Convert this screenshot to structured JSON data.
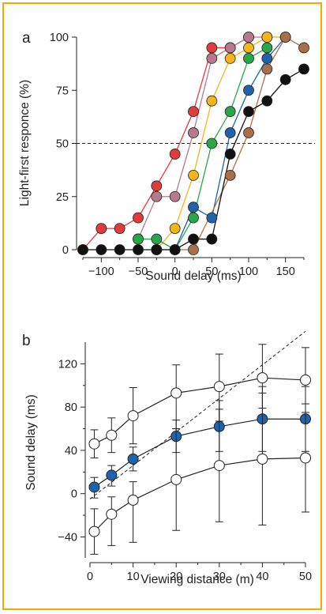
{
  "figure": {
    "border_color": "#f2a900"
  },
  "chart_data": [
    {
      "panel": "a",
      "type": "line",
      "xlabel": "Sound delay (ms)",
      "ylabel": "Light-first responce (%)",
      "xlim": [
        -125,
        185
      ],
      "ylim": [
        0,
        100
      ],
      "xticks": [
        -100,
        -50,
        0,
        50,
        100,
        150
      ],
      "xtick_labels": [
        "−100",
        "−50",
        "0",
        "50",
        "100",
        "150"
      ],
      "yticks": [
        0,
        25,
        50,
        75,
        100
      ],
      "ytick_labels": [
        "0",
        "25",
        "50",
        "75",
        "100"
      ],
      "reference_line": {
        "y": 50,
        "style": "dashed"
      },
      "series": [
        {
          "color": "#e03c3c",
          "x": [
            -125,
            -100,
            -75,
            -50,
            -25,
            0,
            25,
            50,
            75,
            100
          ],
          "y": [
            0,
            10,
            10,
            15,
            30,
            45,
            65,
            95,
            95,
            100
          ]
        },
        {
          "color": "#b8788e",
          "x": [
            -50,
            -25,
            0,
            25,
            50,
            75,
            100,
            125
          ],
          "y": [
            5,
            25,
            25,
            55,
            90,
            95,
            100,
            100
          ]
        },
        {
          "color": "#f2b51c",
          "x": [
            -25,
            0,
            25,
            50,
            75,
            100,
            125,
            150
          ],
          "y": [
            0,
            10,
            35,
            70,
            90,
            95,
            100,
            100
          ]
        },
        {
          "color": "#2aa64a",
          "x": [
            -50,
            -25,
            0,
            25,
            50,
            75,
            100,
            125
          ],
          "y": [
            5,
            5,
            0,
            15,
            50,
            65,
            90,
            95
          ]
        },
        {
          "color": "#1d64ad",
          "x": [
            0,
            25,
            50,
            75,
            100,
            125,
            150
          ],
          "y": [
            0,
            20,
            15,
            55,
            75,
            90,
            100
          ]
        },
        {
          "color": "#a8704a",
          "x": [
            -25,
            25,
            75,
            100,
            125,
            150,
            175
          ],
          "y": [
            0,
            0,
            35,
            55,
            85,
            100,
            95
          ]
        },
        {
          "color": "#111111",
          "x": [
            -125,
            -100,
            -75,
            -50,
            -25,
            0,
            25,
            50,
            75,
            100,
            125,
            150,
            175
          ],
          "y": [
            0,
            0,
            0,
            0,
            0,
            0,
            5,
            5,
            45,
            65,
            70,
            80,
            85
          ]
        }
      ]
    },
    {
      "panel": "b",
      "type": "line",
      "xlabel": "Viewing distance (m)",
      "ylabel": "Sound delay (ms)",
      "xlim": [
        0,
        50
      ],
      "ylim": [
        -55,
        140
      ],
      "xticks": [
        0,
        10,
        20,
        30,
        40,
        50
      ],
      "xtick_labels": [
        "0",
        "10",
        "20",
        "30",
        "40",
        "50"
      ],
      "yticks": [
        -40,
        0,
        40,
        80,
        120
      ],
      "ytick_labels": [
        "−40",
        "0",
        "40",
        "80",
        "120"
      ],
      "reference_line": {
        "x": [
          0,
          50
        ],
        "y": [
          -5,
          150
        ],
        "style": "dashed"
      },
      "series": [
        {
          "marker": "open",
          "x": [
            1,
            5,
            10,
            20,
            30,
            40,
            50
          ],
          "y": [
            46,
            54,
            72,
            93,
            99,
            107,
            105
          ],
          "err_low": [
            33,
            38,
            46,
            60,
            67,
            79,
            75
          ],
          "err_high": [
            59,
            70,
            98,
            119,
            129,
            138,
            135
          ]
        },
        {
          "marker": "filled",
          "color": "#1d64ad",
          "x": [
            1,
            5,
            10,
            20,
            30,
            40,
            50
          ],
          "y": [
            6,
            17,
            32,
            53,
            62,
            69,
            69
          ],
          "err_low": [
            -4,
            7,
            21,
            38,
            39,
            39,
            39
          ],
          "err_high": [
            15,
            26,
            43,
            68,
            86,
            99,
            99
          ]
        },
        {
          "marker": "open",
          "x": [
            1,
            5,
            10,
            20,
            30,
            40,
            50
          ],
          "y": [
            -35,
            -19,
            -6,
            13,
            26,
            32,
            33
          ],
          "err_low": [
            -56,
            -48,
            -45,
            -34,
            -26,
            -29,
            -17
          ],
          "err_high": [
            -14,
            -3,
            11,
            60,
            78,
            93,
            83
          ]
        }
      ]
    }
  ]
}
